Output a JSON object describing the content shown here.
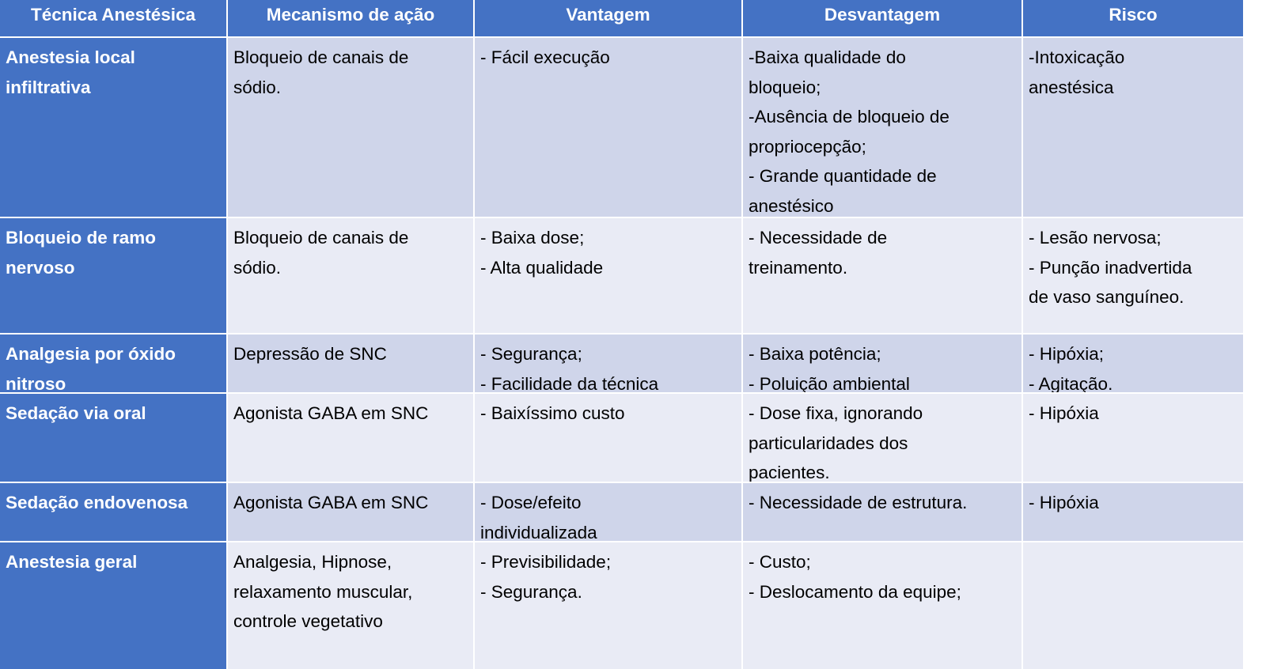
{
  "colors": {
    "header": "#4472C4",
    "row_odd": "#CFD5EA",
    "row_even": "#E9EBF5"
  },
  "headers": [
    "Técnica Anestésica",
    "Mecanismo de ação",
    "Vantagem",
    "Desvantagem",
    "Risco"
  ],
  "rows": [
    {
      "technique": [
        "Anestesia local",
        "infiltrativa"
      ],
      "cells": [
        [
          "Bloqueio de canais de",
          "sódio."
        ],
        [
          "- Fácil execução"
        ],
        [
          "-Baixa qualidade do",
          "bloqueio;",
          "-Ausência de bloqueio de",
          "propriocepção;",
          "- Grande quantidade de",
          "anestésico"
        ],
        [
          "-Intoxicação",
          "anestésica"
        ]
      ]
    },
    {
      "technique": [
        "Bloqueio de ramo",
        "nervoso"
      ],
      "cells": [
        [
          "Bloqueio de canais de",
          "sódio."
        ],
        [
          "- Baixa dose;",
          "- Alta qualidade"
        ],
        [
          "- Necessidade de",
          "treinamento."
        ],
        [
          "- Lesão nervosa;",
          "- Punção inadvertida",
          "de vaso sanguíneo."
        ]
      ]
    },
    {
      "technique": [
        "Analgesia por óxido",
        "nitroso"
      ],
      "cells": [
        [
          "Depressão de SNC"
        ],
        [
          "- Segurança;",
          "- Facilidade da técnica"
        ],
        [
          "- Baixa potência;",
          "- Poluição ambiental"
        ],
        [
          "- Hipóxia;",
          "- Agitação."
        ]
      ]
    },
    {
      "technique": [
        "Sedação via oral"
      ],
      "cells": [
        [
          "Agonista GABA em SNC"
        ],
        [
          "- Baixíssimo custo"
        ],
        [
          "- Dose fixa, ignorando",
          "particularidades dos",
          "pacientes."
        ],
        [
          "- Hipóxia"
        ]
      ]
    },
    {
      "technique": [
        "Sedação endovenosa"
      ],
      "cells": [
        [
          "Agonista GABA em SNC"
        ],
        [
          "- Dose/efeito",
          "individualizada"
        ],
        [
          "- Necessidade de estrutura."
        ],
        [
          "- Hipóxia"
        ]
      ]
    },
    {
      "technique": [
        "Anestesia geral"
      ],
      "cells": [
        [
          "Analgesia, Hipnose,",
          "relaxamento muscular,",
          "controle vegetativo"
        ],
        [
          "- Previsibilidade;",
          "- Segurança."
        ],
        [
          "- Custo;",
          "- Deslocamento da equipe;"
        ],
        []
      ]
    }
  ]
}
